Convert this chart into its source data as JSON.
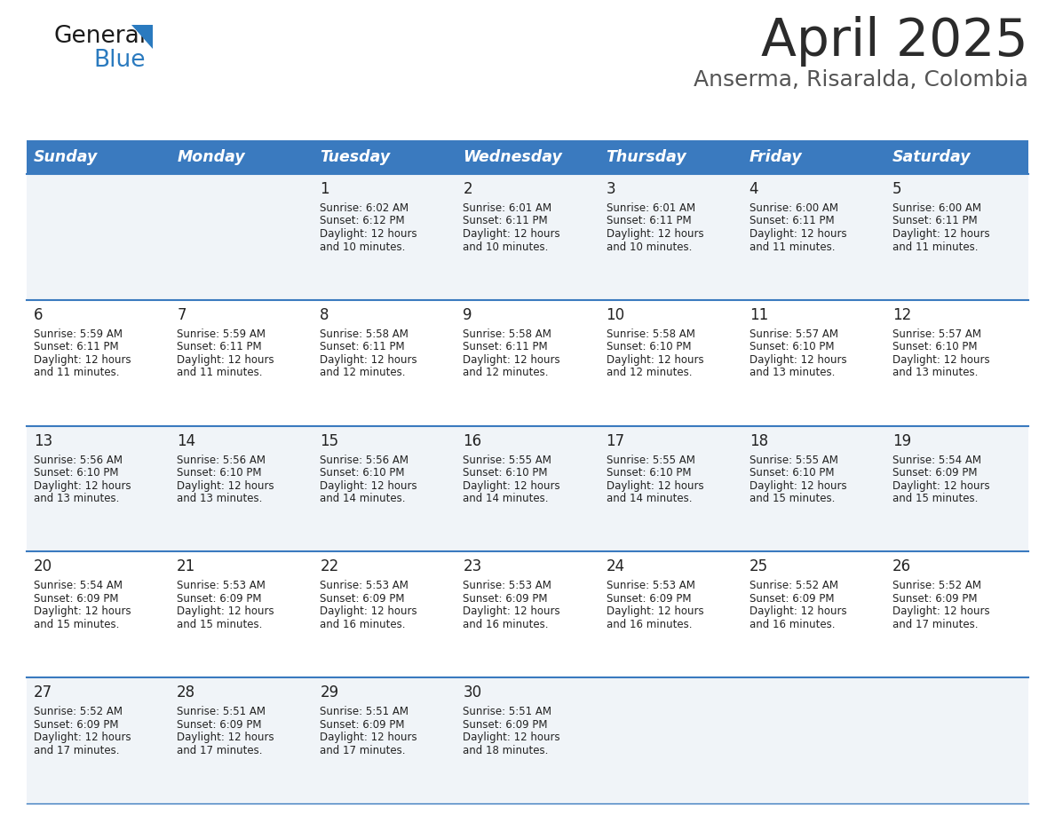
{
  "title": "April 2025",
  "subtitle": "Anserma, Risaralda, Colombia",
  "header_bg_color": "#3a7abf",
  "header_text_color": "#ffffff",
  "weekdays": [
    "Sunday",
    "Monday",
    "Tuesday",
    "Wednesday",
    "Thursday",
    "Friday",
    "Saturday"
  ],
  "row_bg_even": "#f0f4f8",
  "row_bg_odd": "#ffffff",
  "separator_color": "#3a7abf",
  "text_color": "#222222",
  "title_color": "#2b2b2b",
  "subtitle_color": "#555555",
  "days": [
    {
      "day": 1,
      "col": 2,
      "row": 0,
      "sunrise": "6:02 AM",
      "sunset": "6:12 PM",
      "daylight_hours": 12,
      "daylight_minutes": 10
    },
    {
      "day": 2,
      "col": 3,
      "row": 0,
      "sunrise": "6:01 AM",
      "sunset": "6:11 PM",
      "daylight_hours": 12,
      "daylight_minutes": 10
    },
    {
      "day": 3,
      "col": 4,
      "row": 0,
      "sunrise": "6:01 AM",
      "sunset": "6:11 PM",
      "daylight_hours": 12,
      "daylight_minutes": 10
    },
    {
      "day": 4,
      "col": 5,
      "row": 0,
      "sunrise": "6:00 AM",
      "sunset": "6:11 PM",
      "daylight_hours": 12,
      "daylight_minutes": 11
    },
    {
      "day": 5,
      "col": 6,
      "row": 0,
      "sunrise": "6:00 AM",
      "sunset": "6:11 PM",
      "daylight_hours": 12,
      "daylight_minutes": 11
    },
    {
      "day": 6,
      "col": 0,
      "row": 1,
      "sunrise": "5:59 AM",
      "sunset": "6:11 PM",
      "daylight_hours": 12,
      "daylight_minutes": 11
    },
    {
      "day": 7,
      "col": 1,
      "row": 1,
      "sunrise": "5:59 AM",
      "sunset": "6:11 PM",
      "daylight_hours": 12,
      "daylight_minutes": 11
    },
    {
      "day": 8,
      "col": 2,
      "row": 1,
      "sunrise": "5:58 AM",
      "sunset": "6:11 PM",
      "daylight_hours": 12,
      "daylight_minutes": 12
    },
    {
      "day": 9,
      "col": 3,
      "row": 1,
      "sunrise": "5:58 AM",
      "sunset": "6:11 PM",
      "daylight_hours": 12,
      "daylight_minutes": 12
    },
    {
      "day": 10,
      "col": 4,
      "row": 1,
      "sunrise": "5:58 AM",
      "sunset": "6:10 PM",
      "daylight_hours": 12,
      "daylight_minutes": 12
    },
    {
      "day": 11,
      "col": 5,
      "row": 1,
      "sunrise": "5:57 AM",
      "sunset": "6:10 PM",
      "daylight_hours": 12,
      "daylight_minutes": 13
    },
    {
      "day": 12,
      "col": 6,
      "row": 1,
      "sunrise": "5:57 AM",
      "sunset": "6:10 PM",
      "daylight_hours": 12,
      "daylight_minutes": 13
    },
    {
      "day": 13,
      "col": 0,
      "row": 2,
      "sunrise": "5:56 AM",
      "sunset": "6:10 PM",
      "daylight_hours": 12,
      "daylight_minutes": 13
    },
    {
      "day": 14,
      "col": 1,
      "row": 2,
      "sunrise": "5:56 AM",
      "sunset": "6:10 PM",
      "daylight_hours": 12,
      "daylight_minutes": 13
    },
    {
      "day": 15,
      "col": 2,
      "row": 2,
      "sunrise": "5:56 AM",
      "sunset": "6:10 PM",
      "daylight_hours": 12,
      "daylight_minutes": 14
    },
    {
      "day": 16,
      "col": 3,
      "row": 2,
      "sunrise": "5:55 AM",
      "sunset": "6:10 PM",
      "daylight_hours": 12,
      "daylight_minutes": 14
    },
    {
      "day": 17,
      "col": 4,
      "row": 2,
      "sunrise": "5:55 AM",
      "sunset": "6:10 PM",
      "daylight_hours": 12,
      "daylight_minutes": 14
    },
    {
      "day": 18,
      "col": 5,
      "row": 2,
      "sunrise": "5:55 AM",
      "sunset": "6:10 PM",
      "daylight_hours": 12,
      "daylight_minutes": 15
    },
    {
      "day": 19,
      "col": 6,
      "row": 2,
      "sunrise": "5:54 AM",
      "sunset": "6:09 PM",
      "daylight_hours": 12,
      "daylight_minutes": 15
    },
    {
      "day": 20,
      "col": 0,
      "row": 3,
      "sunrise": "5:54 AM",
      "sunset": "6:09 PM",
      "daylight_hours": 12,
      "daylight_minutes": 15
    },
    {
      "day": 21,
      "col": 1,
      "row": 3,
      "sunrise": "5:53 AM",
      "sunset": "6:09 PM",
      "daylight_hours": 12,
      "daylight_minutes": 15
    },
    {
      "day": 22,
      "col": 2,
      "row": 3,
      "sunrise": "5:53 AM",
      "sunset": "6:09 PM",
      "daylight_hours": 12,
      "daylight_minutes": 16
    },
    {
      "day": 23,
      "col": 3,
      "row": 3,
      "sunrise": "5:53 AM",
      "sunset": "6:09 PM",
      "daylight_hours": 12,
      "daylight_minutes": 16
    },
    {
      "day": 24,
      "col": 4,
      "row": 3,
      "sunrise": "5:53 AM",
      "sunset": "6:09 PM",
      "daylight_hours": 12,
      "daylight_minutes": 16
    },
    {
      "day": 25,
      "col": 5,
      "row": 3,
      "sunrise": "5:52 AM",
      "sunset": "6:09 PM",
      "daylight_hours": 12,
      "daylight_minutes": 16
    },
    {
      "day": 26,
      "col": 6,
      "row": 3,
      "sunrise": "5:52 AM",
      "sunset": "6:09 PM",
      "daylight_hours": 12,
      "daylight_minutes": 17
    },
    {
      "day": 27,
      "col": 0,
      "row": 4,
      "sunrise": "5:52 AM",
      "sunset": "6:09 PM",
      "daylight_hours": 12,
      "daylight_minutes": 17
    },
    {
      "day": 28,
      "col": 1,
      "row": 4,
      "sunrise": "5:51 AM",
      "sunset": "6:09 PM",
      "daylight_hours": 12,
      "daylight_minutes": 17
    },
    {
      "day": 29,
      "col": 2,
      "row": 4,
      "sunrise": "5:51 AM",
      "sunset": "6:09 PM",
      "daylight_hours": 12,
      "daylight_minutes": 17
    },
    {
      "day": 30,
      "col": 3,
      "row": 4,
      "sunrise": "5:51 AM",
      "sunset": "6:09 PM",
      "daylight_hours": 12,
      "daylight_minutes": 18
    }
  ]
}
